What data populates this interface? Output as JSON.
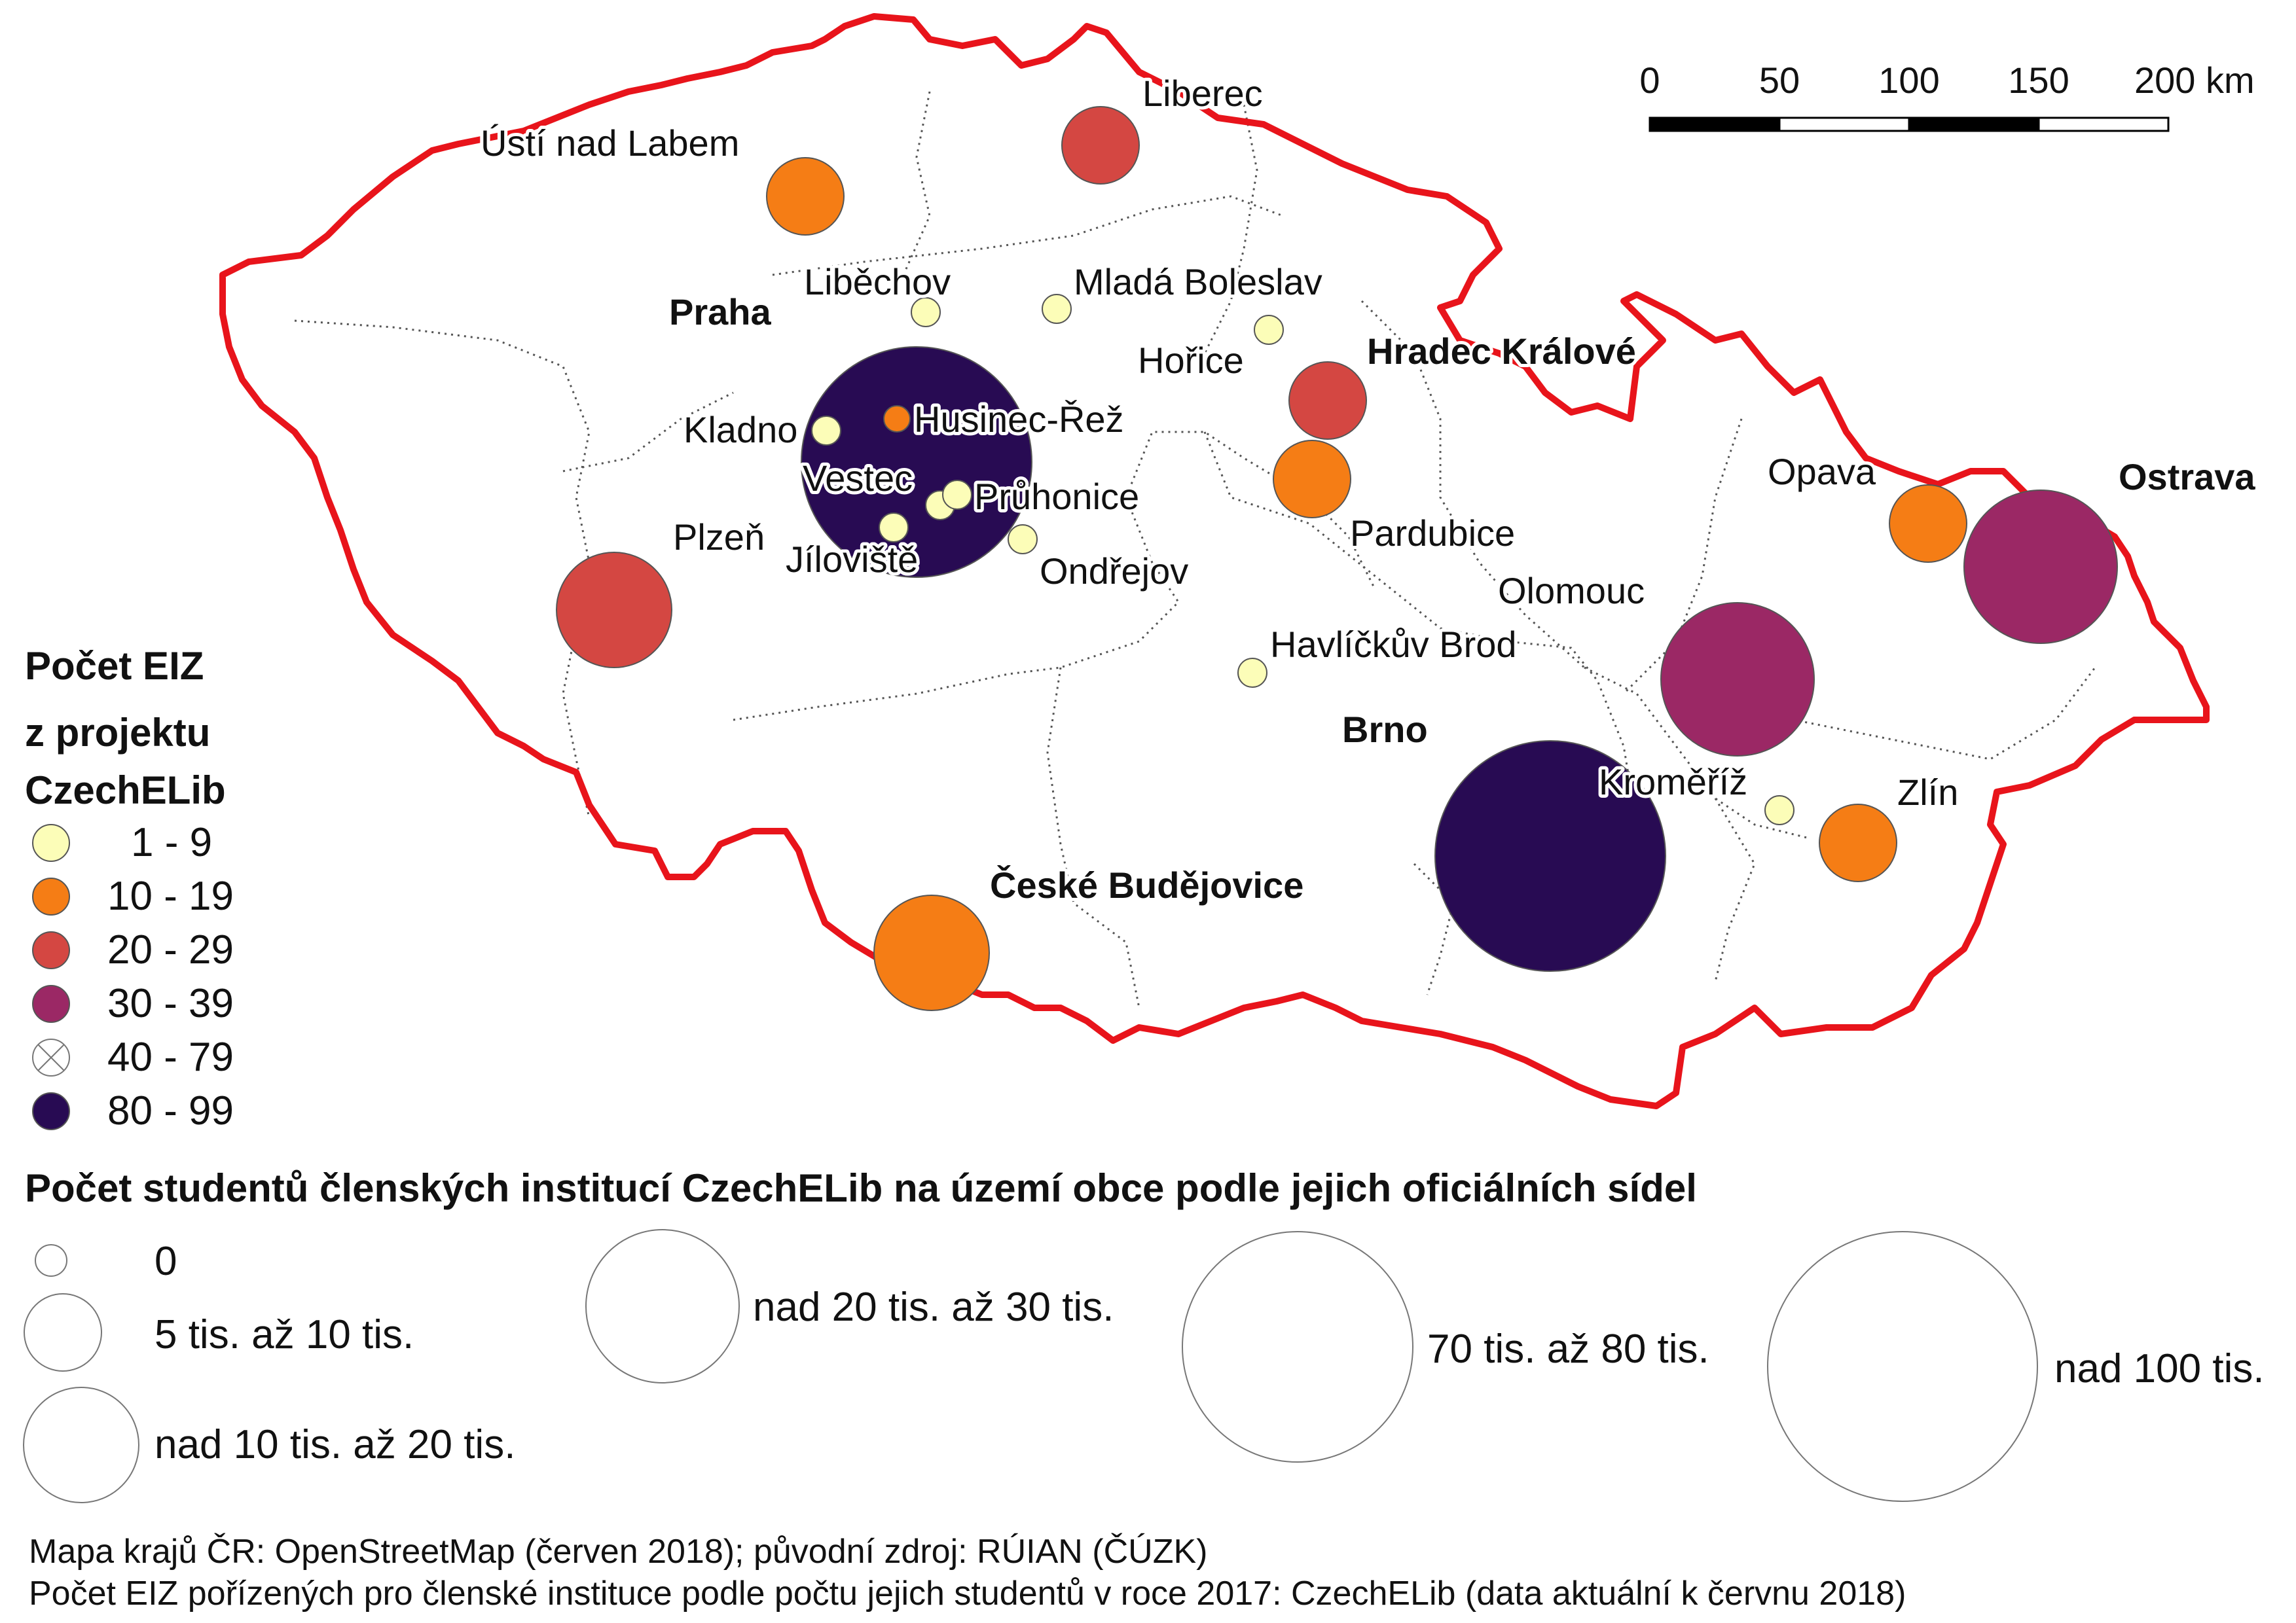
{
  "colors": {
    "cls_1_9": "#fcfdb8",
    "cls_10_19": "#f57d15",
    "cls_20_29": "#d44742",
    "cls_30_39": "#9b2865",
    "cls_80_99": "#280b53",
    "border_country": "#e8141b",
    "border_region": "#555555"
  },
  "scalebar": {
    "ticks": [
      "0",
      "50",
      "100",
      "150",
      "200 km"
    ]
  },
  "cities": [
    {
      "key": "usti",
      "name": "Ústí nad Labem",
      "bold": false,
      "class": "10-19"
    },
    {
      "key": "liberec",
      "name": "Liberec",
      "bold": false,
      "class": "20-29"
    },
    {
      "key": "libechov",
      "name": "Liběchov",
      "bold": false,
      "class": "1-9"
    },
    {
      "key": "mlada",
      "name": "Mladá Boleslav",
      "bold": false,
      "class": "1-9"
    },
    {
      "key": "praha",
      "name": "Praha",
      "bold": true,
      "class": "80-99"
    },
    {
      "key": "horice",
      "name": "Hořice",
      "bold": false,
      "class": "1-9"
    },
    {
      "key": "hradec",
      "name": "Hradec Králové",
      "bold": true,
      "class": "20-29"
    },
    {
      "key": "kladno",
      "name": "Kladno",
      "bold": false,
      "class": "1-9"
    },
    {
      "key": "husinec",
      "name": "Husinec-Řež",
      "bold": false,
      "class": "10-19"
    },
    {
      "key": "vestec",
      "name": "Vestec",
      "bold": false,
      "class": "1-9"
    },
    {
      "key": "pruhonice",
      "name": "Průhonice",
      "bold": false,
      "class": "1-9"
    },
    {
      "key": "jiloviste",
      "name": "Jíloviště",
      "bold": false,
      "class": "1-9"
    },
    {
      "key": "ondrejov",
      "name": "Ondřejov",
      "bold": false,
      "class": "1-9"
    },
    {
      "key": "plzen",
      "name": "Plzeň",
      "bold": false,
      "class": "20-29"
    },
    {
      "key": "pardubice",
      "name": "Pardubice",
      "bold": false,
      "class": "10-19"
    },
    {
      "key": "opava",
      "name": "Opava",
      "bold": false,
      "class": "10-19"
    },
    {
      "key": "ostrava",
      "name": "Ostrava",
      "bold": true,
      "class": "30-39"
    },
    {
      "key": "olomouc",
      "name": "Olomouc",
      "bold": false,
      "class": "30-39"
    },
    {
      "key": "havlickuv",
      "name": "Havlíčkův Brod",
      "bold": false,
      "class": "1-9"
    },
    {
      "key": "brno",
      "name": "Brno",
      "bold": true,
      "class": "80-99"
    },
    {
      "key": "kromeriz",
      "name": "Kroměříž",
      "bold": false,
      "class": "1-9"
    },
    {
      "key": "zlin",
      "name": "Zlín",
      "bold": false,
      "class": "10-19"
    },
    {
      "key": "budejovice",
      "name": "České Budějovice",
      "bold": true,
      "class": "10-19"
    }
  ],
  "legend_eiz": {
    "title_lines": [
      "Počet EIZ",
      "z projektu",
      "CzechELib"
    ],
    "items": [
      {
        "label": "1 - 9",
        "symbol": "fill-1-9"
      },
      {
        "label": "10 - 19",
        "symbol": "fill-10-19"
      },
      {
        "label": "20 - 29",
        "symbol": "fill-20-29"
      },
      {
        "label": "30 - 39",
        "symbol": "fill-30-39"
      },
      {
        "label": "40 - 79",
        "symbol": "crossed-empty"
      },
      {
        "label": "80 - 99",
        "symbol": "fill-80-99"
      }
    ]
  },
  "legend_students": {
    "title": "Počet studentů členských institucí CzechELib na území obce podle jejich oficiálních sídel",
    "items": [
      {
        "label": "0"
      },
      {
        "label": "5 tis. až 10 tis."
      },
      {
        "label": "nad 10 tis. až 20 tis."
      },
      {
        "label": "nad 20 tis. až 30 tis."
      },
      {
        "label": "70 tis. až 80 tis."
      },
      {
        "label": "nad 100 tis."
      }
    ]
  },
  "sources": [
    "Mapa krajů ČR: OpenStreetMap (červen 2018); původní zdroj: RÚIAN (ČÚZK)",
    "Počet EIZ pořízených pro členské instituce podle počtu jejich studentů v roce 2017: CzechELib (data aktuální k červnu 2018)"
  ]
}
